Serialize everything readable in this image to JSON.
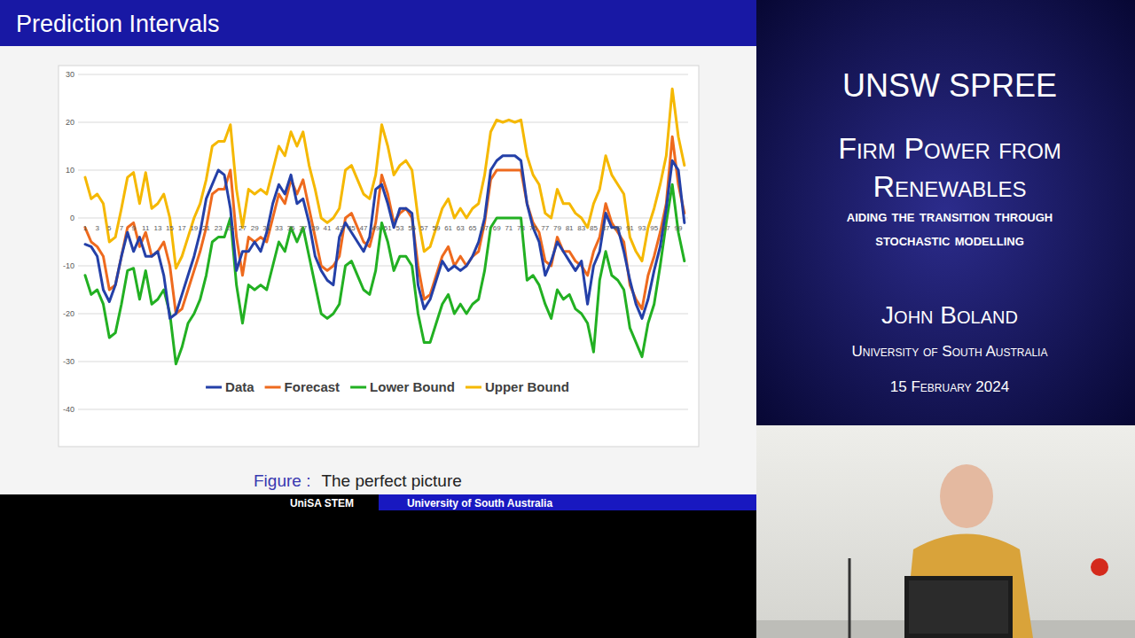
{
  "slide": {
    "title": "Prediction Intervals",
    "caption_label": "Figure :",
    "caption_text": "The perfect picture",
    "footer_left": "UniSA STEM",
    "footer_right": "University of South Australia"
  },
  "panel": {
    "heading": "UNSW SPREE",
    "talk_title": [
      "Firm Power from",
      "Renewables"
    ],
    "talk_subtitle": [
      "aiding the transition through",
      "stochastic modelling"
    ],
    "speaker": "John Boland",
    "affiliation": "University of South Australia",
    "date": "15 February 2024"
  },
  "chart_data": {
    "type": "line",
    "categories": [
      "1",
      null,
      "3",
      null,
      "5",
      null,
      "7",
      null,
      "9",
      null,
      "11",
      null,
      "13",
      null,
      "15",
      null,
      "17",
      null,
      "19",
      null,
      "21",
      null,
      "23",
      null,
      "25",
      null,
      "27",
      null,
      "29",
      null,
      "31",
      null,
      "33",
      null,
      "35",
      null,
      "37",
      null,
      "39",
      null,
      "41",
      null,
      "43",
      null,
      "45",
      null,
      "47",
      null,
      "49",
      null,
      "51",
      null,
      "53",
      null,
      "55",
      null,
      "57",
      null,
      "59",
      null,
      "61",
      null,
      "63",
      null,
      "65",
      null,
      "67",
      null,
      "69",
      null,
      "71",
      null,
      "73",
      null,
      "75",
      null,
      "77",
      null,
      "79",
      null,
      "81",
      null,
      "83",
      null,
      "85",
      null,
      "87",
      null,
      "89",
      null,
      "91",
      null,
      "93",
      null,
      "95",
      null,
      "97",
      null,
      "99",
      null
    ],
    "series": [
      {
        "name": "Data",
        "color": "#2440a8",
        "values": [
          -5.5,
          -6,
          -8,
          -15,
          -17.5,
          -14,
          -8,
          -3,
          -7,
          -4,
          -8,
          -8,
          -7,
          -12,
          -21,
          -20,
          -16,
          -12,
          -8,
          -3,
          4,
          7,
          10,
          9,
          2,
          -11,
          -7,
          -7,
          -5,
          -7,
          -3,
          3,
          7,
          5,
          9,
          3,
          4,
          -1,
          -8,
          -11,
          -13,
          -14,
          -4,
          -1,
          -3,
          -5,
          -7,
          -4,
          6,
          7,
          3,
          -2,
          2,
          2,
          1,
          -14,
          -19,
          -17,
          -13,
          -9,
          -11,
          -10,
          -11,
          -10,
          -8,
          -5,
          0,
          10,
          12,
          13,
          13,
          13,
          12,
          3,
          -2,
          -5,
          -12,
          -9,
          -5,
          -7,
          -9,
          -11,
          -9,
          -18,
          -10,
          -7,
          1,
          -2,
          -2,
          -7,
          -13,
          -18,
          -21,
          -17,
          -11,
          -6,
          2,
          12,
          10,
          -1
        ]
      },
      {
        "name": "Forecast",
        "color": "#ee6a1e",
        "values": [
          -2,
          -5,
          -6,
          -8,
          -15,
          -14,
          -8,
          -2,
          -1,
          -6,
          -3,
          -8,
          -7,
          -5,
          -10,
          -20,
          -19,
          -15,
          -11,
          -7,
          -2,
          5,
          6,
          6,
          10,
          -4,
          -12,
          -4,
          -5,
          -4,
          -5,
          0,
          5,
          3,
          8,
          5,
          8,
          2,
          -4,
          -10,
          -11,
          -10,
          -8,
          0,
          1,
          -2,
          -5,
          -6,
          -1,
          9,
          5,
          -1,
          1,
          2,
          0,
          -10,
          -17,
          -16,
          -12,
          -8,
          -6,
          -10,
          -8,
          -10,
          -8,
          -7,
          -1,
          8,
          10,
          10,
          10,
          10,
          10,
          3,
          -1,
          -3,
          -9,
          -10,
          -4,
          -7,
          -7,
          -9,
          -10,
          -12,
          -7,
          -4,
          3,
          -1,
          -3,
          -5,
          -14,
          -17,
          -19,
          -12,
          -8,
          -3,
          3,
          17,
          7,
          1
        ]
      },
      {
        "name": "Lower Bound",
        "color": "#22b022",
        "values": [
          -12,
          -16,
          -15,
          -18,
          -25,
          -24,
          -18,
          -11,
          -10.5,
          -17,
          -11,
          -18,
          -17,
          -15,
          -20,
          -30.5,
          -27,
          -22,
          -20,
          -17,
          -12,
          -5,
          -4,
          -4,
          0,
          -14,
          -22,
          -14,
          -15,
          -14,
          -15,
          -10,
          -5,
          -7,
          -2,
          -5,
          -2,
          -8,
          -14,
          -20,
          -21,
          -20,
          -18,
          -10,
          -9,
          -12,
          -15,
          -16,
          -11,
          -1,
          -5,
          -11,
          -8,
          -8,
          -10,
          -20,
          -26,
          -26,
          -22,
          -18,
          -16,
          -20,
          -18,
          -20,
          -18,
          -17,
          -11,
          -2,
          0,
          0,
          0,
          0,
          0,
          -13,
          -12,
          -14,
          -18,
          -21,
          -15,
          -17,
          -16,
          -19,
          -20,
          -22,
          -28,
          -13,
          -7,
          -12,
          -13,
          -15,
          -23,
          -26,
          -29,
          -22,
          -18,
          -10,
          -1,
          7,
          -3,
          -9
        ]
      },
      {
        "name": "Upper Bound",
        "color": "#f5b800",
        "values": [
          8.5,
          4,
          5,
          3,
          -5,
          -4,
          2,
          8.5,
          9.5,
          3,
          9.5,
          2,
          3,
          5,
          0,
          -10.5,
          -8,
          -4,
          0,
          3,
          8,
          15,
          16,
          16,
          19.5,
          6,
          -2,
          6,
          5,
          6,
          5,
          10,
          15,
          13,
          18,
          15,
          18,
          11,
          6,
          0,
          -1,
          0,
          2,
          10,
          11,
          8,
          5,
          4,
          9,
          19.5,
          15,
          9,
          11,
          12,
          10,
          0,
          -7,
          -6,
          -2,
          2,
          4,
          0,
          2,
          0,
          2,
          3,
          9,
          18,
          20.5,
          20,
          20.5,
          20,
          20.5,
          13,
          9,
          7,
          1,
          0,
          6,
          3,
          3,
          1,
          0,
          -2,
          3,
          6,
          13,
          9,
          7,
          5,
          -4,
          -7,
          -9,
          -2,
          2,
          7,
          13,
          27,
          17,
          11
        ]
      }
    ],
    "ylim": [
      -40,
      30
    ],
    "yticks": [
      -40,
      -30,
      -20,
      -10,
      0,
      10,
      20,
      30
    ],
    "grid": true,
    "legend": "bottom"
  }
}
